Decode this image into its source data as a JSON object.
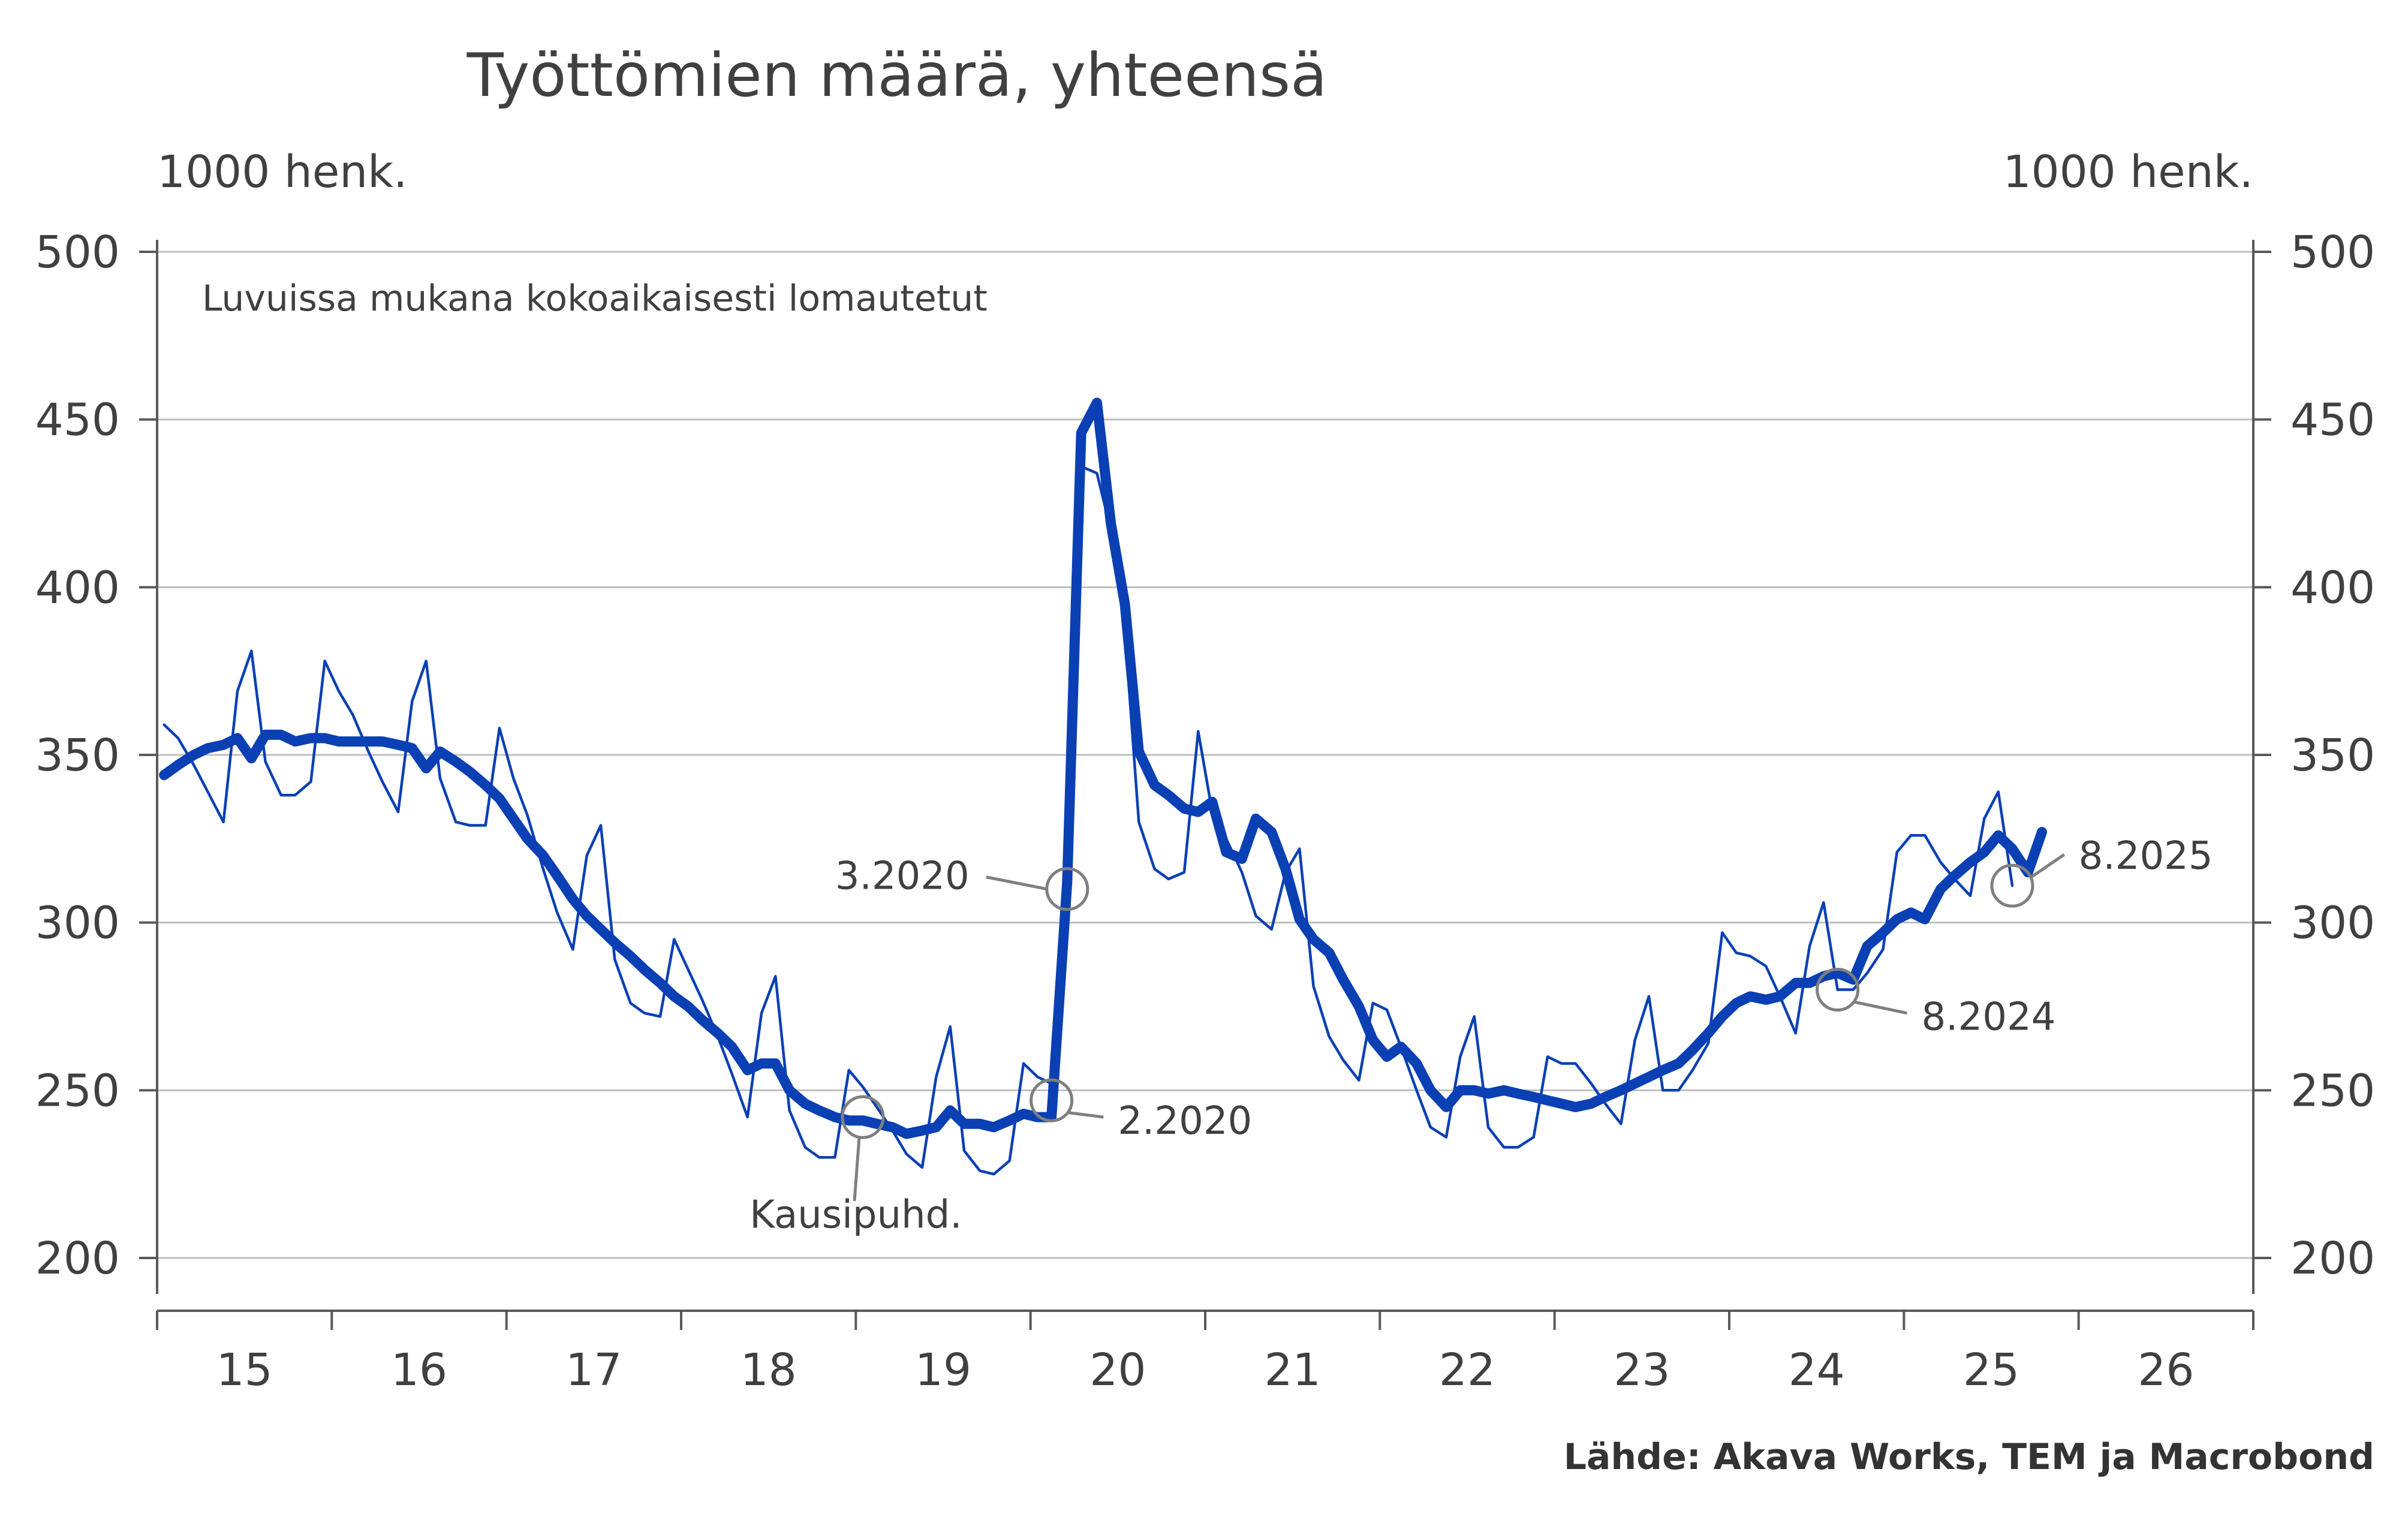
{
  "chart_data": {
    "type": "line",
    "title": "Työttömien määrä, yhteensä",
    "ylabel_left": "1000 henk.",
    "ylabel_right": "1000 henk.",
    "note": "Luvuissa mukana kokoaikaisesti lomautetut",
    "source": "Lähde: Akava Works, TEM ja Macrobond",
    "ylim": [
      200,
      500
    ],
    "y_ticks": [
      "500",
      "450",
      "400",
      "350",
      "300",
      "250",
      "200"
    ],
    "y_tick_values": [
      500,
      450,
      400,
      350,
      300,
      250,
      200
    ],
    "xlim": [
      2015.0,
      2027.0
    ],
    "x_tick_labels": [
      "15",
      "16",
      "17",
      "18",
      "19",
      "20",
      "21",
      "22",
      "23",
      "24",
      "25",
      "26"
    ],
    "x_label_values": [
      2015.5,
      2016.5,
      2017.5,
      2018.5,
      2019.5,
      2020.5,
      2021.5,
      2022.5,
      2023.5,
      2024.5,
      2025.5,
      2026.5
    ],
    "x_tick_values": [
      2015,
      2016,
      2017,
      2018,
      2019,
      2020,
      2021,
      2022,
      2023,
      2024,
      2025,
      2026,
      2027
    ],
    "grid": true,
    "series": [
      {
        "name": "",
        "style": "thin",
        "color": "#0a40b4",
        "points": [
          [
            2015.04,
            359
          ],
          [
            2015.12,
            355
          ],
          [
            2015.21,
            347
          ],
          [
            2015.29,
            339
          ],
          [
            2015.38,
            330
          ],
          [
            2015.46,
            369
          ],
          [
            2015.54,
            381
          ],
          [
            2015.62,
            348
          ],
          [
            2015.71,
            338
          ],
          [
            2015.79,
            338
          ],
          [
            2015.88,
            342
          ],
          [
            2015.96,
            378
          ],
          [
            2016.04,
            369
          ],
          [
            2016.12,
            362
          ],
          [
            2016.21,
            351
          ],
          [
            2016.29,
            342
          ],
          [
            2016.38,
            333
          ],
          [
            2016.46,
            366
          ],
          [
            2016.54,
            378
          ],
          [
            2016.62,
            343
          ],
          [
            2016.71,
            330
          ],
          [
            2016.79,
            329
          ],
          [
            2016.88,
            329
          ],
          [
            2016.96,
            358
          ],
          [
            2017.04,
            343
          ],
          [
            2017.12,
            332
          ],
          [
            2017.21,
            316
          ],
          [
            2017.29,
            303
          ],
          [
            2017.38,
            292
          ],
          [
            2017.46,
            320
          ],
          [
            2017.54,
            329
          ],
          [
            2017.62,
            289
          ],
          [
            2017.71,
            276
          ],
          [
            2017.79,
            273
          ],
          [
            2017.88,
            272
          ],
          [
            2017.96,
            295
          ],
          [
            2018.04,
            286
          ],
          [
            2018.12,
            277
          ],
          [
            2018.21,
            266
          ],
          [
            2018.29,
            255
          ],
          [
            2018.38,
            242
          ],
          [
            2018.46,
            273
          ],
          [
            2018.54,
            284
          ],
          [
            2018.62,
            244
          ],
          [
            2018.71,
            233
          ],
          [
            2018.79,
            230
          ],
          [
            2018.88,
            230
          ],
          [
            2018.96,
            256
          ],
          [
            2019.04,
            251
          ],
          [
            2019.12,
            245
          ],
          [
            2019.21,
            238
          ],
          [
            2019.29,
            231
          ],
          [
            2019.38,
            227
          ],
          [
            2019.46,
            254
          ],
          [
            2019.54,
            269
          ],
          [
            2019.62,
            232
          ],
          [
            2019.71,
            226
          ],
          [
            2019.79,
            225
          ],
          [
            2019.88,
            229
          ],
          [
            2019.96,
            258
          ],
          [
            2020.04,
            254
          ],
          [
            2020.12,
            252
          ],
          [
            2020.21,
            310
          ],
          [
            2020.29,
            436
          ],
          [
            2020.38,
            434
          ],
          [
            2020.46,
            417
          ],
          [
            2020.54,
            387
          ],
          [
            2020.62,
            330
          ],
          [
            2020.71,
            316
          ],
          [
            2020.79,
            313
          ],
          [
            2020.88,
            315
          ],
          [
            2020.96,
            357
          ],
          [
            2021.04,
            333
          ],
          [
            2021.12,
            325
          ],
          [
            2021.21,
            315
          ],
          [
            2021.29,
            302
          ],
          [
            2021.38,
            298
          ],
          [
            2021.46,
            315
          ],
          [
            2021.54,
            322
          ],
          [
            2021.62,
            281
          ],
          [
            2021.71,
            266
          ],
          [
            2021.79,
            259
          ],
          [
            2021.88,
            253
          ],
          [
            2021.96,
            276
          ],
          [
            2022.04,
            274
          ],
          [
            2022.12,
            263
          ],
          [
            2022.21,
            250
          ],
          [
            2022.29,
            239
          ],
          [
            2022.38,
            236
          ],
          [
            2022.46,
            260
          ],
          [
            2022.54,
            272
          ],
          [
            2022.62,
            239
          ],
          [
            2022.71,
            233
          ],
          [
            2022.79,
            233
          ],
          [
            2022.88,
            236
          ],
          [
            2022.96,
            260
          ],
          [
            2023.04,
            258
          ],
          [
            2023.12,
            258
          ],
          [
            2023.21,
            252
          ],
          [
            2023.29,
            246
          ],
          [
            2023.38,
            240
          ],
          [
            2023.46,
            265
          ],
          [
            2023.54,
            278
          ],
          [
            2023.62,
            250
          ],
          [
            2023.71,
            250
          ],
          [
            2023.79,
            256
          ],
          [
            2023.88,
            264
          ],
          [
            2023.96,
            297
          ],
          [
            2024.04,
            291
          ],
          [
            2024.12,
            290
          ],
          [
            2024.21,
            287
          ],
          [
            2024.29,
            278
          ],
          [
            2024.38,
            267
          ],
          [
            2024.46,
            293
          ],
          [
            2024.54,
            306
          ],
          [
            2024.62,
            280
          ],
          [
            2024.71,
            280
          ],
          [
            2024.79,
            285
          ],
          [
            2024.88,
            292
          ],
          [
            2024.96,
            321
          ],
          [
            2025.04,
            326
          ],
          [
            2025.12,
            326
          ],
          [
            2025.21,
            318
          ],
          [
            2025.29,
            313
          ],
          [
            2025.38,
            308
          ],
          [
            2025.46,
            331
          ],
          [
            2025.54,
            339
          ],
          [
            2025.62,
            311
          ]
        ]
      },
      {
        "name": "Kausipuhd.",
        "style": "thick",
        "color": "#0a40b4",
        "points": [
          [
            2015.04,
            344
          ],
          [
            2015.12,
            347
          ],
          [
            2015.21,
            350
          ],
          [
            2015.29,
            352
          ],
          [
            2015.38,
            353
          ],
          [
            2015.46,
            355
          ],
          [
            2015.54,
            349
          ],
          [
            2015.62,
            356
          ],
          [
            2015.71,
            356
          ],
          [
            2015.79,
            354
          ],
          [
            2015.88,
            355
          ],
          [
            2015.96,
            355
          ],
          [
            2016.04,
            354
          ],
          [
            2016.12,
            354
          ],
          [
            2016.21,
            354
          ],
          [
            2016.29,
            354
          ],
          [
            2016.38,
            353
          ],
          [
            2016.46,
            352
          ],
          [
            2016.54,
            346
          ],
          [
            2016.62,
            351
          ],
          [
            2016.71,
            348
          ],
          [
            2016.79,
            345
          ],
          [
            2016.88,
            341
          ],
          [
            2016.96,
            337
          ],
          [
            2017.04,
            331
          ],
          [
            2017.12,
            325
          ],
          [
            2017.21,
            320
          ],
          [
            2017.29,
            314
          ],
          [
            2017.38,
            307
          ],
          [
            2017.46,
            302
          ],
          [
            2017.54,
            298
          ],
          [
            2017.62,
            294
          ],
          [
            2017.71,
            290
          ],
          [
            2017.79,
            286
          ],
          [
            2017.88,
            282
          ],
          [
            2017.96,
            278
          ],
          [
            2018.04,
            275
          ],
          [
            2018.12,
            271
          ],
          [
            2018.21,
            267
          ],
          [
            2018.29,
            263
          ],
          [
            2018.38,
            256
          ],
          [
            2018.46,
            258
          ],
          [
            2018.54,
            258
          ],
          [
            2018.62,
            250
          ],
          [
            2018.71,
            246
          ],
          [
            2018.79,
            244
          ],
          [
            2018.88,
            242
          ],
          [
            2018.96,
            241
          ],
          [
            2019.04,
            241
          ],
          [
            2019.12,
            240
          ],
          [
            2019.21,
            239
          ],
          [
            2019.29,
            237
          ],
          [
            2019.38,
            238
          ],
          [
            2019.46,
            239
          ],
          [
            2019.54,
            244
          ],
          [
            2019.62,
            240
          ],
          [
            2019.71,
            240
          ],
          [
            2019.79,
            239
          ],
          [
            2019.88,
            241
          ],
          [
            2019.96,
            243
          ],
          [
            2020.04,
            242
          ],
          [
            2020.12,
            242
          ],
          [
            2020.21,
            312
          ],
          [
            2020.29,
            446
          ],
          [
            2020.38,
            455
          ],
          [
            2020.46,
            419
          ],
          [
            2020.54,
            395
          ],
          [
            2020.62,
            351
          ],
          [
            2020.71,
            341
          ],
          [
            2020.79,
            338
          ],
          [
            2020.88,
            334
          ],
          [
            2020.96,
            333
          ],
          [
            2021.04,
            336
          ],
          [
            2021.12,
            321
          ],
          [
            2021.21,
            319
          ],
          [
            2021.29,
            331
          ],
          [
            2021.38,
            327
          ],
          [
            2021.46,
            316
          ],
          [
            2021.54,
            301
          ],
          [
            2021.62,
            295
          ],
          [
            2021.71,
            291
          ],
          [
            2021.79,
            283
          ],
          [
            2021.88,
            275
          ],
          [
            2021.96,
            265
          ],
          [
            2022.04,
            260
          ],
          [
            2022.12,
            263
          ],
          [
            2022.21,
            258
          ],
          [
            2022.29,
            250
          ],
          [
            2022.38,
            245
          ],
          [
            2022.46,
            250
          ],
          [
            2022.54,
            250
          ],
          [
            2022.62,
            249
          ],
          [
            2022.71,
            250
          ],
          [
            2022.79,
            249
          ],
          [
            2022.88,
            248
          ],
          [
            2022.96,
            247
          ],
          [
            2023.04,
            246
          ],
          [
            2023.12,
            245
          ],
          [
            2023.21,
            246
          ],
          [
            2023.29,
            248
          ],
          [
            2023.38,
            250
          ],
          [
            2023.46,
            252
          ],
          [
            2023.54,
            254
          ],
          [
            2023.62,
            256
          ],
          [
            2023.71,
            258
          ],
          [
            2023.79,
            262
          ],
          [
            2023.88,
            267
          ],
          [
            2023.96,
            272
          ],
          [
            2024.04,
            276
          ],
          [
            2024.12,
            278
          ],
          [
            2024.21,
            277
          ],
          [
            2024.29,
            278
          ],
          [
            2024.38,
            282
          ],
          [
            2024.46,
            282
          ],
          [
            2024.54,
            284
          ],
          [
            2024.62,
            285
          ],
          [
            2024.71,
            283
          ],
          [
            2024.79,
            293
          ],
          [
            2024.88,
            297
          ],
          [
            2024.96,
            301
          ],
          [
            2025.04,
            303
          ],
          [
            2025.12,
            301
          ],
          [
            2025.21,
            310
          ],
          [
            2025.29,
            314
          ],
          [
            2025.38,
            318
          ],
          [
            2025.46,
            321
          ],
          [
            2025.54,
            326
          ],
          [
            2025.62,
            322
          ],
          [
            2025.71,
            315
          ],
          [
            2025.79,
            327
          ]
        ]
      }
    ],
    "annotations": [
      {
        "label": "Kausipuhd.",
        "x": 2019.04,
        "y": 242,
        "label_x": 2019.0,
        "label_y": 209,
        "anchor": "middle",
        "leader": "bottom"
      },
      {
        "label": "2.2020",
        "x": 2020.12,
        "y": 247,
        "label_x": 2020.5,
        "label_y": 237,
        "anchor": "start",
        "leader": "right-down"
      },
      {
        "label": "3.2020",
        "x": 2020.21,
        "y": 310,
        "label_x": 2019.65,
        "label_y": 310,
        "anchor": "end",
        "leader": "left"
      },
      {
        "label": "8.2024",
        "x": 2024.62,
        "y": 280,
        "label_x": 2025.1,
        "label_y": 268,
        "anchor": "start",
        "leader": "right-down"
      },
      {
        "label": "8.2025",
        "x": 2025.62,
        "y": 311,
        "label_x": 2026.0,
        "label_y": 316,
        "anchor": "start",
        "leader": "right-up"
      }
    ]
  }
}
